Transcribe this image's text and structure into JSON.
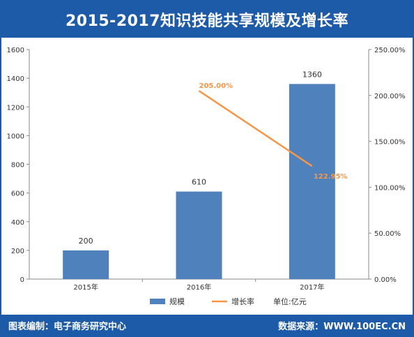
{
  "title": "2015-2017知识技能共享规模及增长率",
  "footer": {
    "left": "图表编制：电子商务研究中心",
    "right": "数据来源：WWW.100EC.CN"
  },
  "unit_label": "单位:亿元",
  "colors": {
    "brand": "#1d5aa8",
    "bar": "#4f81bd",
    "line": "#f79646",
    "axis": "#8a8a8a",
    "text": "#333333"
  },
  "chart_data": {
    "type": "bar",
    "categories": [
      "2015年",
      "2016年",
      "2017年"
    ],
    "series": [
      {
        "name": "规模",
        "type": "bar",
        "axis": "left",
        "values": [
          200,
          610,
          1360
        ]
      },
      {
        "name": "增长率",
        "type": "line",
        "axis": "right",
        "values": [
          null,
          205.0,
          122.95
        ]
      }
    ],
    "bar_labels": [
      "200",
      "610",
      "1360"
    ],
    "line_labels": [
      null,
      "205.00%",
      "122.95%"
    ],
    "ylim": [
      0,
      1600
    ],
    "y_ticks": [
      0,
      200,
      400,
      600,
      800,
      1000,
      1200,
      1400,
      1600
    ],
    "y_tick_labels": [
      "0",
      "200",
      "400",
      "600",
      "800",
      "1000",
      "1200",
      "1400",
      "1600"
    ],
    "y2lim": [
      0,
      250
    ],
    "y2_ticks": [
      0,
      50,
      100,
      150,
      200,
      250
    ],
    "y2_tick_labels": [
      "0.00%",
      "50.00%",
      "100.00%",
      "150.00%",
      "200.00%",
      "250.00%"
    ],
    "legend_position": "bottom",
    "grid": false
  }
}
